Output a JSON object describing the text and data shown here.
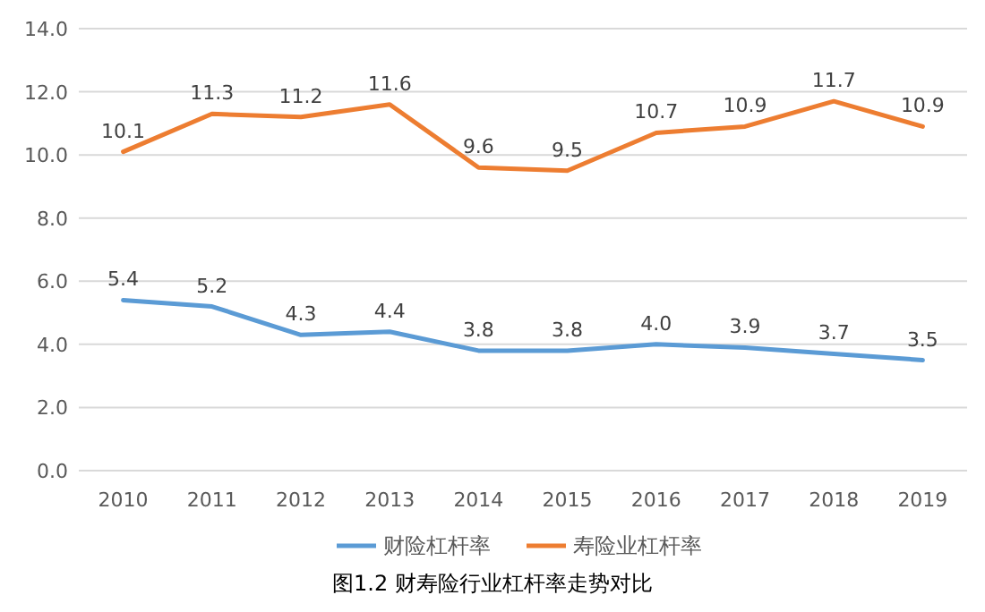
{
  "chart_data": {
    "type": "line",
    "categories": [
      "2010",
      "2011",
      "2012",
      "2013",
      "2014",
      "2015",
      "2016",
      "2017",
      "2018",
      "2019"
    ],
    "series": [
      {
        "name": "财险杠杆率",
        "color": "#5b9bd5",
        "values": [
          5.4,
          5.2,
          4.3,
          4.4,
          3.8,
          3.8,
          4.0,
          3.9,
          3.7,
          3.5
        ],
        "value_labels": [
          "5.4",
          "5.2",
          "4.3",
          "4.4",
          "3.8",
          "3.8",
          "4.0",
          "3.9",
          "3.7",
          "3.5"
        ]
      },
      {
        "name": "寿险业杠杆率",
        "color": "#ed7d31",
        "values": [
          10.1,
          11.3,
          11.2,
          11.6,
          9.6,
          9.5,
          10.7,
          10.9,
          11.7,
          10.9
        ],
        "value_labels": [
          "10.1",
          "11.3",
          "11.2",
          "11.6",
          "9.6",
          "9.5",
          "10.7",
          "10.9",
          "11.7",
          "10.9"
        ]
      }
    ],
    "ylim": [
      0,
      14
    ],
    "yticks": [
      {
        "value": 0,
        "label": "0.0"
      },
      {
        "value": 2,
        "label": "2.0"
      },
      {
        "value": 4,
        "label": "4.0"
      },
      {
        "value": 6,
        "label": "6.0"
      },
      {
        "value": 8,
        "label": "8.0"
      },
      {
        "value": 10,
        "label": "10.0"
      },
      {
        "value": 12,
        "label": "12.0"
      },
      {
        "value": 14,
        "label": "14.0"
      }
    ],
    "grid": "y",
    "legend": "bottom",
    "marker": "none",
    "line_style": "solid",
    "annotations": [
      "图1.2 财寿险行业杠杆率走势对比"
    ]
  }
}
